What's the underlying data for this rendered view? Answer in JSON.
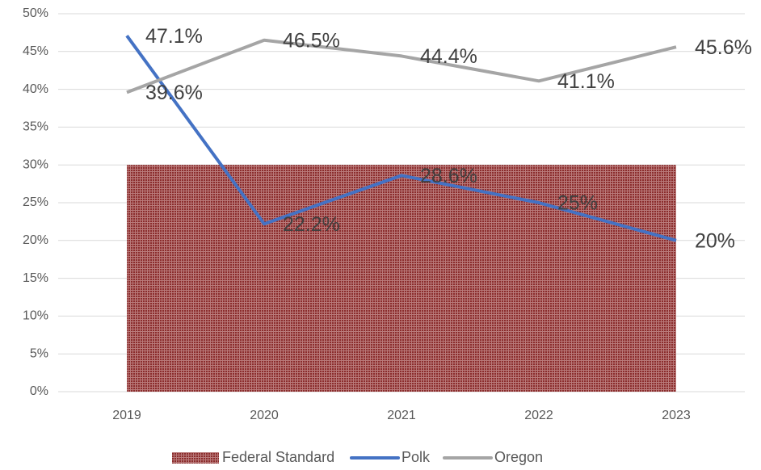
{
  "chart_data": {
    "type": "line",
    "categories": [
      "2019",
      "2020",
      "2021",
      "2022",
      "2023"
    ],
    "series": [
      {
        "name": "Federal Standard",
        "type": "area",
        "color": "#8b2c2c",
        "values": [
          30,
          30,
          30,
          30,
          30
        ]
      },
      {
        "name": "Polk",
        "color": "#4472c4",
        "values": [
          47.1,
          22.2,
          28.6,
          25,
          20
        ],
        "value_labels": [
          "47.1%",
          "22.2%",
          "28.6%",
          "25%",
          "20%"
        ]
      },
      {
        "name": "Oregon",
        "color": "#a5a5a5",
        "values": [
          39.6,
          46.5,
          44.4,
          41.1,
          45.6
        ],
        "value_labels": [
          "39.6%",
          "46.5%",
          "44.4%",
          "41.1%",
          "45.6%"
        ]
      }
    ],
    "ylim": [
      0,
      50
    ],
    "yticks": [
      {
        "value": 0,
        "label": "0%"
      },
      {
        "value": 5,
        "label": "5%"
      },
      {
        "value": 10,
        "label": "10%"
      },
      {
        "value": 15,
        "label": "15%"
      },
      {
        "value": 20,
        "label": "20%"
      },
      {
        "value": 25,
        "label": "25%"
      },
      {
        "value": 30,
        "label": "30%"
      },
      {
        "value": 35,
        "label": "35%"
      },
      {
        "value": 40,
        "label": "40%"
      },
      {
        "value": 45,
        "label": "45%"
      },
      {
        "value": 50,
        "label": "50%"
      }
    ],
    "grid": true,
    "legend": "bottom"
  }
}
